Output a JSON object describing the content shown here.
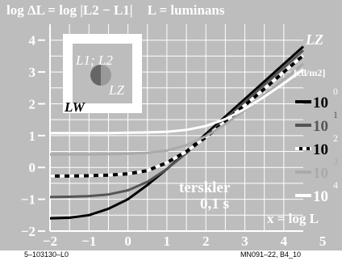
{
  "header": {
    "left": "log ΔL = log |L2 − L1|",
    "right": "L = luminans"
  },
  "inset": {
    "label_l1l2": "L1; L2",
    "label_lz": "LZ",
    "label_lw": "LW"
  },
  "legend": {
    "title": "LZ",
    "unit": "[cd/m2]",
    "entries": [
      {
        "base": "10",
        "exp": "0",
        "color": "#000000",
        "style": "solid"
      },
      {
        "base": "10",
        "exp": "1",
        "color": "#555555",
        "style": "solid"
      },
      {
        "base": "10",
        "exp": "2",
        "color": "#000000",
        "style": "dashed"
      },
      {
        "base": "10",
        "exp": "3",
        "color": "#aaaaaa",
        "style": "solid"
      },
      {
        "base": "10",
        "exp": "4",
        "color": "#ffffff",
        "style": "solid"
      }
    ]
  },
  "annotation": {
    "line1": "terskler",
    "line2": "0,1 s"
  },
  "x_axis_label": "x = log L",
  "footer": {
    "left": "5–103130–L0",
    "right": "MN091–22, B4_10"
  },
  "colors": {
    "background": "#bdbdbd",
    "frame": "#ffffff",
    "text": "#ffffff"
  },
  "chart_data": {
    "type": "line",
    "xlim": [
      -2,
      4.5
    ],
    "ylim": [
      -2,
      4.5
    ],
    "x_ticks": [
      -2,
      -1,
      0,
      1,
      2,
      3,
      4,
      5
    ],
    "y_ticks": [
      -2,
      -1,
      0,
      1,
      2,
      3,
      4
    ],
    "grid": true,
    "series": [
      {
        "name": "10^0",
        "x": [
          -2,
          -1.5,
          -1,
          -0.5,
          0,
          0.5,
          1,
          1.5,
          2,
          2.5,
          3,
          3.5,
          4,
          4.5
        ],
        "y": [
          -1.6,
          -1.58,
          -1.5,
          -1.3,
          -1.0,
          -0.55,
          -0.05,
          0.5,
          1.05,
          1.6,
          2.15,
          2.7,
          3.25,
          3.8
        ]
      },
      {
        "name": "10^1",
        "x": [
          -2,
          -1.5,
          -1,
          -0.5,
          0,
          0.5,
          1,
          1.5,
          2,
          2.5,
          3,
          3.5,
          4,
          4.5
        ],
        "y": [
          -0.93,
          -0.92,
          -0.9,
          -0.85,
          -0.72,
          -0.45,
          -0.05,
          0.45,
          0.98,
          1.52,
          2.06,
          2.6,
          3.14,
          3.68
        ]
      },
      {
        "name": "10^2",
        "x": [
          -2,
          -1.5,
          -1,
          -0.5,
          0,
          0.5,
          1,
          1.5,
          2,
          2.5,
          3,
          3.5,
          4,
          4.5
        ],
        "y": [
          -0.27,
          -0.27,
          -0.26,
          -0.24,
          -0.2,
          -0.1,
          0.15,
          0.5,
          0.95,
          1.44,
          1.95,
          2.47,
          3.0,
          3.52
        ]
      },
      {
        "name": "10^3",
        "x": [
          -2,
          -1.5,
          -1,
          -0.5,
          0,
          0.5,
          1,
          1.5,
          2,
          2.5,
          3,
          3.5,
          4,
          4.5
        ],
        "y": [
          0.41,
          0.41,
          0.41,
          0.42,
          0.43,
          0.46,
          0.53,
          0.7,
          0.98,
          1.36,
          1.8,
          2.27,
          2.76,
          3.26
        ]
      },
      {
        "name": "10^4",
        "x": [
          -2,
          -1.5,
          -1,
          -0.5,
          0,
          0.5,
          1,
          1.5,
          2,
          2.5,
          3,
          3.5,
          4,
          4.5
        ],
        "y": [
          1.08,
          1.08,
          1.08,
          1.08,
          1.09,
          1.1,
          1.12,
          1.18,
          1.3,
          1.52,
          1.84,
          2.22,
          2.64,
          3.08
        ]
      }
    ]
  }
}
